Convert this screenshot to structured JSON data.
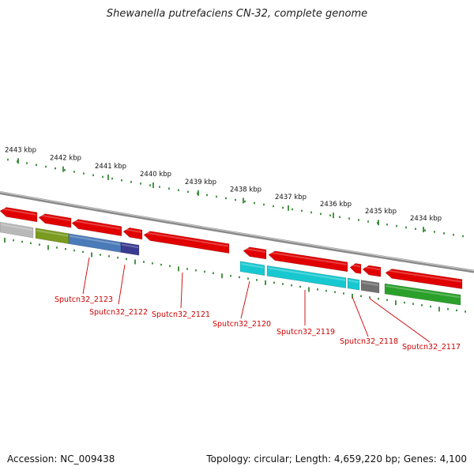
{
  "title": "Shewanella putrefaciens CN-32, complete genome",
  "footer": {
    "accession": "Accession: NC_009438",
    "stats": "Topology: circular; Length: 4,659,220 bp; Genes: 4,100"
  },
  "scale_ticks": [
    "2443 kbp",
    "2442 kbp",
    "2441 kbp",
    "2440 kbp",
    "2439 kbp",
    "2438 kbp",
    "2437 kbp",
    "2436 kbp",
    "2435 kbp",
    "2434 kbp"
  ],
  "gene_labels": [
    "Sputcn32_2123",
    "Sputcn32_2122",
    "Sputcn32_2121",
    "Sputcn32_2120",
    "Sputcn32_2119",
    "Sputcn32_2118",
    "Sputcn32_2117"
  ],
  "colors": {
    "backbone": "#8a8a8a",
    "tick": "#1a7a1a",
    "cds_forward": "#e00000",
    "label": "#cc0000",
    "grey": "#b8b8b8",
    "olive": "#7a9a20",
    "blue": "#4a7ab8",
    "indigo": "#3a3a90",
    "cyan": "#18c8d0",
    "dark_grey": "#707070",
    "green": "#2aa02a"
  }
}
